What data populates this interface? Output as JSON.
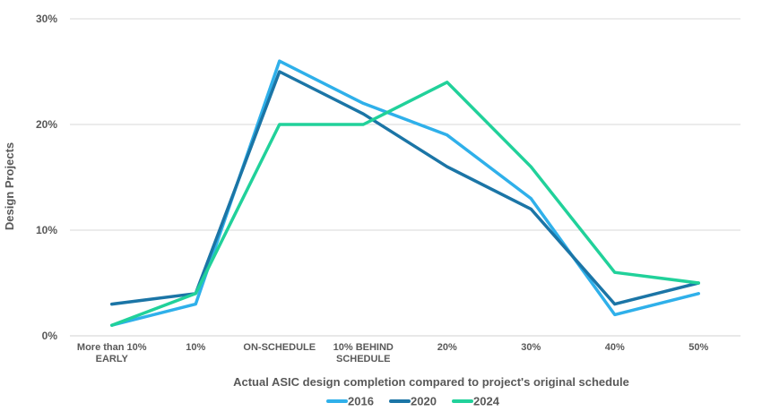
{
  "chart_data": {
    "type": "line",
    "title": "",
    "xlabel": "Actual ASIC design completion compared to project's original schedule",
    "ylabel": "Design Projects",
    "ylim": [
      0,
      30
    ],
    "yticks": [
      0,
      10,
      20,
      30
    ],
    "ytick_labels": [
      "0%",
      "10%",
      "20%",
      "30%"
    ],
    "grid": true,
    "legend_position": "bottom-center",
    "categories": [
      [
        "More than 10%",
        "EARLY"
      ],
      [
        "10%"
      ],
      [
        "ON-SCHEDULE"
      ],
      [
        "10% BEHIND",
        "SCHEDULE"
      ],
      [
        "20%"
      ],
      [
        "30%"
      ],
      [
        "40%"
      ],
      [
        "50%"
      ]
    ],
    "series": [
      {
        "name": "2016",
        "color": "#2fb0ea",
        "values": [
          1,
          3,
          26,
          22,
          19,
          13,
          2,
          4
        ]
      },
      {
        "name": "2020",
        "color": "#1b75a6",
        "values": [
          3,
          4,
          25,
          21,
          16,
          12,
          3,
          5
        ]
      },
      {
        "name": "2024",
        "color": "#21d19a",
        "values": [
          1,
          4,
          20,
          20,
          24,
          16,
          6,
          5
        ]
      }
    ]
  }
}
